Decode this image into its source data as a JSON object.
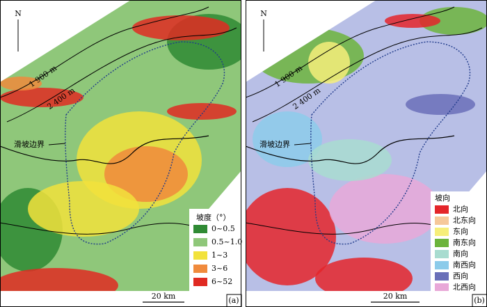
{
  "panels": [
    {
      "north": "N",
      "contours": [
        "1 900 m",
        "2 400 m"
      ],
      "boundary_label": "滑坡边界",
      "legend": {
        "title": "坡度（°）",
        "items": [
          {
            "label": "0~0.5",
            "color": "#2f8a34"
          },
          {
            "label": "0.5~1.0",
            "color": "#8fc77a"
          },
          {
            "label": "1~3",
            "color": "#f2e23c"
          },
          {
            "label": "3~6",
            "color": "#f08a3c"
          },
          {
            "label": "6~52",
            "color": "#e02a22"
          }
        ]
      },
      "scale": "20 km",
      "panel_label": "(a)"
    },
    {
      "north": "N",
      "contours": [
        "1 900 m",
        "2 400 m"
      ],
      "boundary_label": "滑坡边界",
      "legend": {
        "title": "坡向",
        "items": [
          {
            "label": "北向",
            "color": "#e4252a"
          },
          {
            "label": "北东向",
            "color": "#f6c89a"
          },
          {
            "label": "东向",
            "color": "#f6ee7a"
          },
          {
            "label": "南东向",
            "color": "#6cb43c"
          },
          {
            "label": "南向",
            "color": "#a8dcd0"
          },
          {
            "label": "南西向",
            "color": "#8ccbea"
          },
          {
            "label": "西向",
            "color": "#6a6fb8"
          },
          {
            "label": "北西向",
            "color": "#e8a8d8"
          }
        ]
      },
      "scale": "20 km",
      "panel_label": "(b)"
    }
  ]
}
